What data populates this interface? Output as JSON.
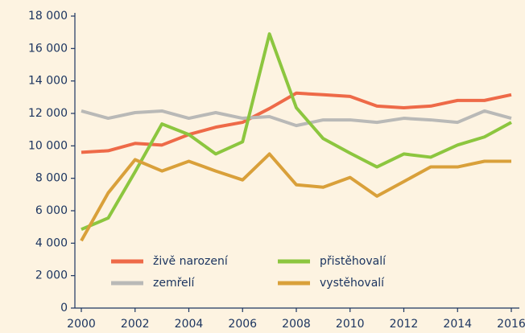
{
  "chart_data": {
    "type": "line",
    "x": [
      2000,
      2001,
      2002,
      2003,
      2004,
      2005,
      2006,
      2007,
      2008,
      2009,
      2010,
      2011,
      2012,
      2013,
      2014,
      2015,
      2016
    ],
    "series": [
      {
        "name": "živě narození",
        "color": "#ee6a48",
        "values": [
          9600,
          9700,
          10150,
          10050,
          10700,
          11150,
          11450,
          12300,
          13250,
          13150,
          13050,
          12450,
          12350,
          12450,
          12800,
          12800,
          13150
        ]
      },
      {
        "name": "zemřelí",
        "color": "#b9b9b7",
        "values": [
          12150,
          11700,
          12050,
          12150,
          11700,
          12050,
          11700,
          11800,
          11250,
          11600,
          11600,
          11450,
          11700,
          11600,
          11450,
          12150,
          11700
        ]
      },
      {
        "name": "přistěhovalí",
        "color": "#8cc63f",
        "values": [
          4850,
          5550,
          8400,
          11350,
          10700,
          9500,
          10250,
          16900,
          12350,
          10450,
          9550,
          8700,
          9500,
          9300,
          10050,
          10550,
          11450
        ]
      },
      {
        "name": "vystěhovalí",
        "color": "#d9a03a",
        "values": [
          4150,
          7100,
          9150,
          8450,
          9050,
          8450,
          7900,
          9500,
          7600,
          7450,
          8050,
          6900,
          7800,
          8700,
          8700,
          9050,
          9050
        ]
      }
    ],
    "xlim": [
      2000,
      2016
    ],
    "xticks": [
      2000,
      2002,
      2004,
      2006,
      2008,
      2010,
      2012,
      2014,
      2016
    ],
    "ylim": [
      0,
      18000
    ],
    "yticks": [
      0,
      {
        "value": 2000,
        "label": "2 000"
      },
      {
        "value": 4000,
        "label": "4 000"
      },
      {
        "value": 6000,
        "label": "6 000"
      },
      {
        "value": 8000,
        "label": "8 000"
      },
      {
        "value": 10000,
        "label": "10 000"
      },
      {
        "value": 12000,
        "label": "12 000"
      },
      {
        "value": 14000,
        "label": "14 000"
      },
      {
        "value": 16000,
        "label": "16 000"
      },
      {
        "value": 18000,
        "label": "18 000"
      }
    ]
  }
}
